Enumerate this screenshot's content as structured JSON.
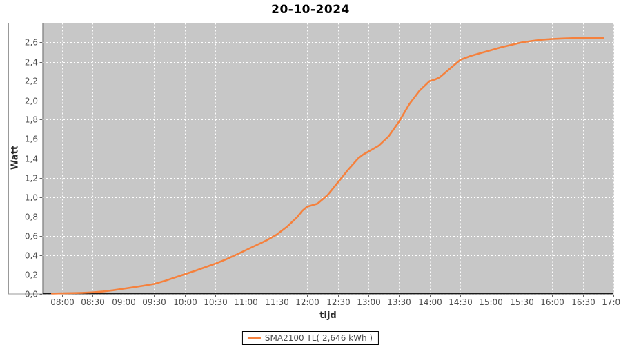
{
  "title": "20-10-2024",
  "axes": {
    "x_label": "tijd",
    "y_label": "Watt"
  },
  "legend": {
    "label": "SMA2100 TL( 2,646 kWh )"
  },
  "colors": {
    "series": "#F5813D",
    "plot_background": "#C7C7C7",
    "gridline": "#FFFFFF",
    "tick_label": "#4D4D4D",
    "frame": "#999999",
    "axis_line": "#333333",
    "legend_border": "#000000",
    "title_text": "#000000"
  },
  "chart_data": {
    "type": "line",
    "title": "20-10-2024",
    "xlabel": "tijd",
    "ylabel": "Watt",
    "legend_position": "bottom",
    "grid": "white-dashed",
    "ylim": [
      0,
      2.8
    ],
    "x_domain": [
      "07:41",
      "17:00"
    ],
    "x_ticks": [
      "08:00",
      "08:30",
      "09:00",
      "09:30",
      "10:00",
      "10:30",
      "11:00",
      "11:30",
      "12:00",
      "12:30",
      "13:00",
      "13:30",
      "14:00",
      "14:30",
      "15:00",
      "15:30",
      "16:00",
      "16:30",
      "17:00"
    ],
    "y_ticks": [
      "0,0",
      "0,2",
      "0,4",
      "0,6",
      "0,8",
      "1,0",
      "1,2",
      "1,4",
      "1,6",
      "1,8",
      "2,0",
      "2,2",
      "2,4",
      "2,6"
    ],
    "y_tick_values": [
      0,
      0.2,
      0.4,
      0.6,
      0.8,
      1.0,
      1.2,
      1.4,
      1.6,
      1.8,
      2.0,
      2.2,
      2.4,
      2.6
    ],
    "series": [
      {
        "name": "SMA2100 TL( 2,646 kWh )",
        "color": "#F5813D",
        "total_kwh": "2,646",
        "points": [
          [
            "07:50",
            0.001
          ],
          [
            "08:00",
            0.003
          ],
          [
            "08:10",
            0.005
          ],
          [
            "08:20",
            0.008
          ],
          [
            "08:30",
            0.013
          ],
          [
            "08:40",
            0.022
          ],
          [
            "08:50",
            0.034
          ],
          [
            "09:00",
            0.05
          ],
          [
            "09:10",
            0.066
          ],
          [
            "09:20",
            0.082
          ],
          [
            "09:30",
            0.1
          ],
          [
            "09:40",
            0.13
          ],
          [
            "09:50",
            0.165
          ],
          [
            "10:00",
            0.2
          ],
          [
            "10:10",
            0.235
          ],
          [
            "10:20",
            0.272
          ],
          [
            "10:30",
            0.31
          ],
          [
            "10:40",
            0.352
          ],
          [
            "10:50",
            0.4
          ],
          [
            "11:00",
            0.45
          ],
          [
            "11:10",
            0.5
          ],
          [
            "11:20",
            0.55
          ],
          [
            "11:30",
            0.61
          ],
          [
            "11:40",
            0.69
          ],
          [
            "11:50",
            0.79
          ],
          [
            "11:55",
            0.855
          ],
          [
            "12:00",
            0.9
          ],
          [
            "12:05",
            0.915
          ],
          [
            "12:10",
            0.93
          ],
          [
            "12:20",
            1.02
          ],
          [
            "12:30",
            1.15
          ],
          [
            "12:40",
            1.28
          ],
          [
            "12:50",
            1.4
          ],
          [
            "12:55",
            1.44
          ],
          [
            "13:00",
            1.47
          ],
          [
            "13:10",
            1.53
          ],
          [
            "13:20",
            1.63
          ],
          [
            "13:30",
            1.78
          ],
          [
            "13:40",
            1.96
          ],
          [
            "13:50",
            2.1
          ],
          [
            "14:00",
            2.2
          ],
          [
            "14:05",
            2.215
          ],
          [
            "14:10",
            2.24
          ],
          [
            "14:20",
            2.33
          ],
          [
            "14:30",
            2.42
          ],
          [
            "14:40",
            2.46
          ],
          [
            "14:50",
            2.49
          ],
          [
            "15:00",
            2.52
          ],
          [
            "15:10",
            2.55
          ],
          [
            "15:20",
            2.575
          ],
          [
            "15:30",
            2.6
          ],
          [
            "15:40",
            2.615
          ],
          [
            "15:50",
            2.628
          ],
          [
            "16:00",
            2.636
          ],
          [
            "16:10",
            2.641
          ],
          [
            "16:20",
            2.644
          ],
          [
            "16:30",
            2.645
          ],
          [
            "16:40",
            2.646
          ],
          [
            "16:50",
            2.646
          ]
        ]
      }
    ]
  }
}
